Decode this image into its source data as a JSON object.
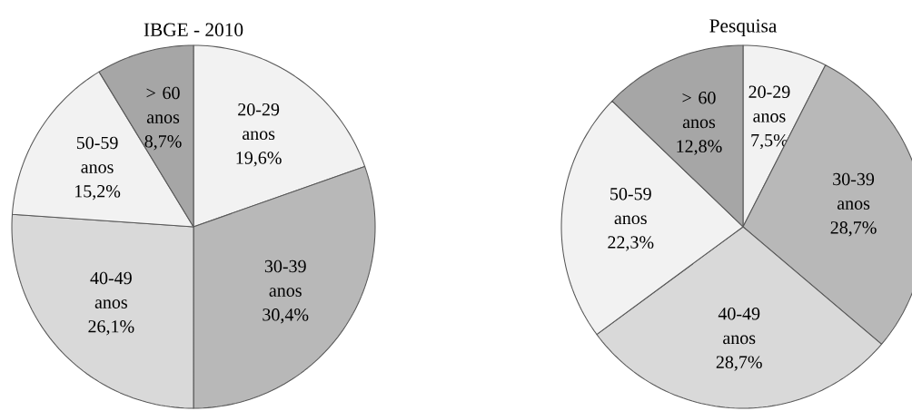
{
  "chart_data": [
    {
      "type": "pie",
      "title": "IBGE - 2010",
      "categories": [
        "20-29 anos",
        "30-39 anos",
        "40-49 anos",
        "50-59 anos",
        "> 60 anos"
      ],
      "values": [
        19.6,
        30.4,
        26.1,
        15.2,
        8.7
      ],
      "value_labels": [
        "19,6%",
        "30,4%",
        "26,1%",
        "15,2%",
        "8,7%"
      ],
      "colors": [
        "#f2f2f2",
        "#b8b8b8",
        "#d9d9d9",
        "#f2f2f2",
        "#a6a6a6"
      ]
    },
    {
      "type": "pie",
      "title": "Pesquisa",
      "categories": [
        "20-29 anos",
        "30-39 anos",
        "40-49 anos",
        "50-59 anos",
        "> 60 anos"
      ],
      "values": [
        7.5,
        28.7,
        28.7,
        22.3,
        12.8
      ],
      "value_labels": [
        "7,5%",
        "28,7%",
        "28,7%",
        "22,3%",
        "12,8%"
      ],
      "colors": [
        "#f2f2f2",
        "#b8b8b8",
        "#d9d9d9",
        "#f2f2f2",
        "#a6a6a6"
      ]
    }
  ]
}
